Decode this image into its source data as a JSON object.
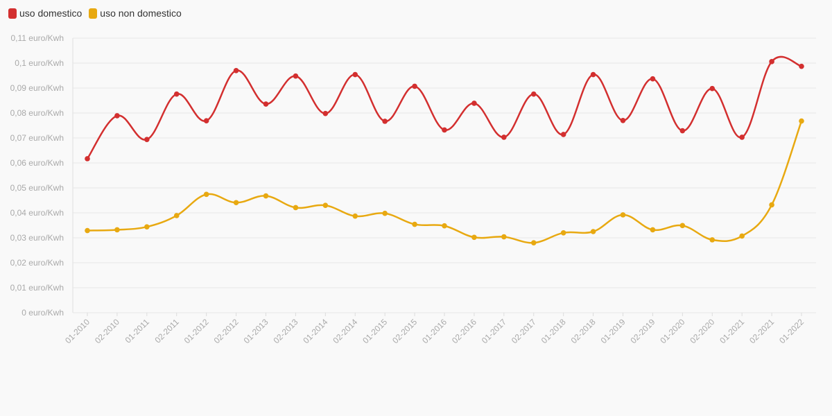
{
  "chart_data": {
    "type": "line",
    "title": "",
    "xlabel": "",
    "ylabel": "",
    "categories": [
      "01-2010",
      "02-2010",
      "01-2011",
      "02-2011",
      "01-2012",
      "02-2012",
      "01-2013",
      "02-2013",
      "01-2014",
      "02-2014",
      "01-2015",
      "02-2015",
      "01-2016",
      "02-2016",
      "01-2017",
      "02-2017",
      "01-2018",
      "02-2018",
      "01-2019",
      "02-2019",
      "01-2020",
      "02-2020",
      "01-2021",
      "02-2021",
      "01-2022"
    ],
    "ylim": [
      0,
      0.11
    ],
    "yticks": [
      0,
      0.01,
      0.02,
      0.03,
      0.04,
      0.05,
      0.06,
      0.07,
      0.08,
      0.09,
      0.1,
      0.11
    ],
    "ytick_labels": [
      "0 euro/Kwh",
      "0,01 euro/Kwh",
      "0,02 euro/Kwh",
      "0,03 euro/Kwh",
      "0,04 euro/Kwh",
      "0,05 euro/Kwh",
      "0,06 euro/Kwh",
      "0,07 euro/Kwh",
      "0,08 euro/Kwh",
      "0,09 euro/Kwh",
      "0,1 euro/Kwh",
      "0,11 euro/Kwh"
    ],
    "grid": true,
    "legend_position": "top-left",
    "series": [
      {
        "name": "uso domestico",
        "color": "#d32f2f",
        "values": [
          0.0617,
          0.0789,
          0.0694,
          0.0876,
          0.0769,
          0.097,
          0.0836,
          0.0948,
          0.0798,
          0.0954,
          0.0767,
          0.0907,
          0.0732,
          0.0839,
          0.0703,
          0.0876,
          0.0714,
          0.0954,
          0.077,
          0.0937,
          0.0729,
          0.0898,
          0.0703,
          0.1006,
          0.0987
        ]
      },
      {
        "name": "uso non domestico",
        "color": "#e8a911",
        "values": [
          0.0329,
          0.0332,
          0.0344,
          0.0389,
          0.0474,
          0.0441,
          0.0468,
          0.0421,
          0.043,
          0.0387,
          0.0398,
          0.0354,
          0.0348,
          0.0302,
          0.0304,
          0.028,
          0.032,
          0.0325,
          0.0392,
          0.0332,
          0.0349,
          0.0292,
          0.0307,
          0.0432,
          0.0768
        ]
      }
    ]
  }
}
